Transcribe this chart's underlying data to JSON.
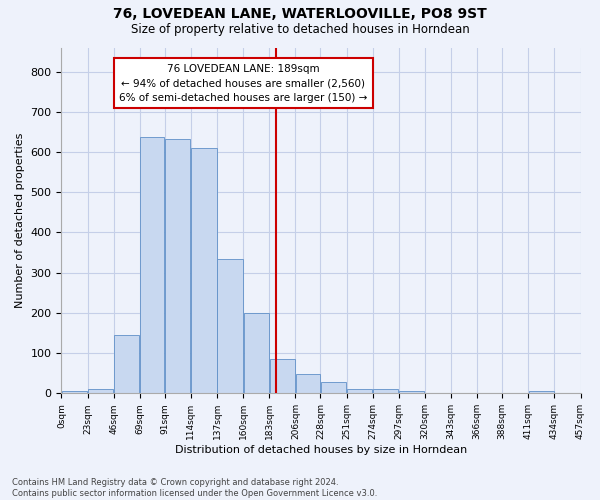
{
  "title": "76, LOVEDEAN LANE, WATERLOOVILLE, PO8 9ST",
  "subtitle": "Size of property relative to detached houses in Horndean",
  "xlabel": "Distribution of detached houses by size in Horndean",
  "ylabel": "Number of detached properties",
  "bar_color": "#c8d8f0",
  "bar_edge_color": "#6090c8",
  "property_size": 189,
  "annotation_line1": "76 LOVEDEAN LANE: 189sqm",
  "annotation_line2": "← 94% of detached houses are smaller (2,560)",
  "annotation_line3": "6% of semi-detached houses are larger (150) →",
  "bins": [
    0,
    23,
    46,
    69,
    91,
    114,
    137,
    160,
    183,
    206,
    228,
    251,
    274,
    297,
    320,
    343,
    366,
    388,
    411,
    434,
    457
  ],
  "bin_labels": [
    "0sqm",
    "23sqm",
    "46sqm",
    "69sqm",
    "91sqm",
    "114sqm",
    "137sqm",
    "160sqm",
    "183sqm",
    "206sqm",
    "228sqm",
    "251sqm",
    "274sqm",
    "297sqm",
    "320sqm",
    "343sqm",
    "366sqm",
    "388sqm",
    "411sqm",
    "434sqm",
    "457sqm"
  ],
  "values": [
    5,
    10,
    145,
    638,
    632,
    610,
    333,
    201,
    85,
    48,
    28,
    12,
    11,
    5,
    0,
    0,
    0,
    0,
    5,
    0,
    0
  ],
  "vline_color": "#cc0000",
  "background_color": "#eef2fb",
  "grid_color": "#c5cfe8",
  "footer_line1": "Contains HM Land Registry data © Crown copyright and database right 2024.",
  "footer_line2": "Contains public sector information licensed under the Open Government Licence v3.0.",
  "ylim": [
    0,
    860
  ],
  "yticks": [
    0,
    100,
    200,
    300,
    400,
    500,
    600,
    700,
    800
  ]
}
